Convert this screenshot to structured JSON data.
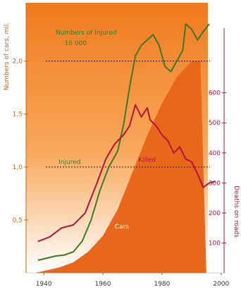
{
  "colors": {
    "bg_top": "#f07a1e",
    "bg_bottom": "#ffffff",
    "cars_fill": "#e9671a",
    "numbers_line": "#3a7a2a",
    "killed_line": "#b2143c",
    "left_axis": "#c76a12",
    "right_axis": "#b2143c",
    "ref_line": "#4a2a10"
  },
  "chart_data": {
    "type": "line",
    "xlabel": "",
    "xlim": [
      1934,
      2001
    ],
    "x_ticks": [
      "1940",
      "1960",
      "1980",
      "2000"
    ],
    "x_tick_values": [
      1940,
      1960,
      1980,
      2000
    ],
    "left_axis": {
      "label": "Numbers of cars, mil.",
      "range": [
        0,
        2.55
      ],
      "ticks": [
        "0,5",
        "1,0",
        "1,5",
        "2,0"
      ],
      "tick_values": [
        0.5,
        1.0,
        1.5,
        2.0
      ]
    },
    "right_axis": {
      "label": "Deaths on roads",
      "range": [
        0,
        900
      ],
      "ticks": [
        "100",
        "200",
        "300",
        "400",
        "500",
        "600"
      ],
      "tick_values": [
        100,
        200,
        300,
        400,
        500,
        600
      ]
    },
    "grid": false,
    "series": [
      {
        "name": "Cars",
        "axis": "left",
        "style": "area",
        "x": [
          1937,
          1945,
          1950,
          1955,
          1960,
          1965,
          1970,
          1975,
          1980,
          1985,
          1990,
          1993,
          1995
        ],
        "y": [
          0.0,
          0.05,
          0.1,
          0.2,
          0.35,
          0.6,
          0.95,
          1.3,
          1.6,
          1.85,
          2.0,
          2.0,
          0.0
        ]
      },
      {
        "name": "Numbers of Injured",
        "axis": "left",
        "style": "line",
        "x": [
          1938,
          1941,
          1944,
          1947,
          1950,
          1953,
          1956,
          1959,
          1962,
          1965,
          1967,
          1969,
          1971,
          1973,
          1975,
          1977,
          1979,
          1981,
          1983,
          1985,
          1987,
          1988,
          1990,
          1992,
          1994,
          1996
        ],
        "y": [
          0.12,
          0.14,
          0.16,
          0.17,
          0.2,
          0.3,
          0.5,
          0.78,
          1.0,
          1.15,
          1.4,
          1.75,
          2.05,
          2.15,
          2.2,
          2.25,
          2.15,
          1.95,
          1.9,
          2.0,
          2.1,
          2.35,
          2.3,
          2.2,
          2.28,
          2.35
        ]
      },
      {
        "name": "Killed",
        "axis": "right",
        "style": "line",
        "x": [
          1938,
          1942,
          1946,
          1950,
          1954,
          1958,
          1961,
          1964,
          1967,
          1969,
          1971,
          1973,
          1975,
          1976,
          1978,
          1980,
          1982,
          1984,
          1986,
          1988,
          1990,
          1992,
          1994,
          1996,
          1998
        ],
        "y": [
          105,
          120,
          150,
          160,
          200,
          300,
          380,
          430,
          460,
          490,
          560,
          520,
          550,
          510,
          490,
          460,
          440,
          400,
          420,
          380,
          370,
          330,
          285,
          300,
          305
        ]
      }
    ],
    "annotations": [
      {
        "text": "Numbers of Injured",
        "x": 1944,
        "y": 2.25
      },
      {
        "text": "10 000",
        "x": 1947,
        "y": 2.15
      },
      {
        "text": "Injured",
        "x": 1945,
        "y": 1.03
      },
      {
        "text": "Killed",
        "x": 1972,
        "y": 1.05
      },
      {
        "text": "Cars",
        "x": 1964,
        "y": 0.42
      }
    ],
    "reference_lines": [
      {
        "axis": "left",
        "y": 2.0
      },
      {
        "axis": "left",
        "y": 1.0
      }
    ]
  }
}
